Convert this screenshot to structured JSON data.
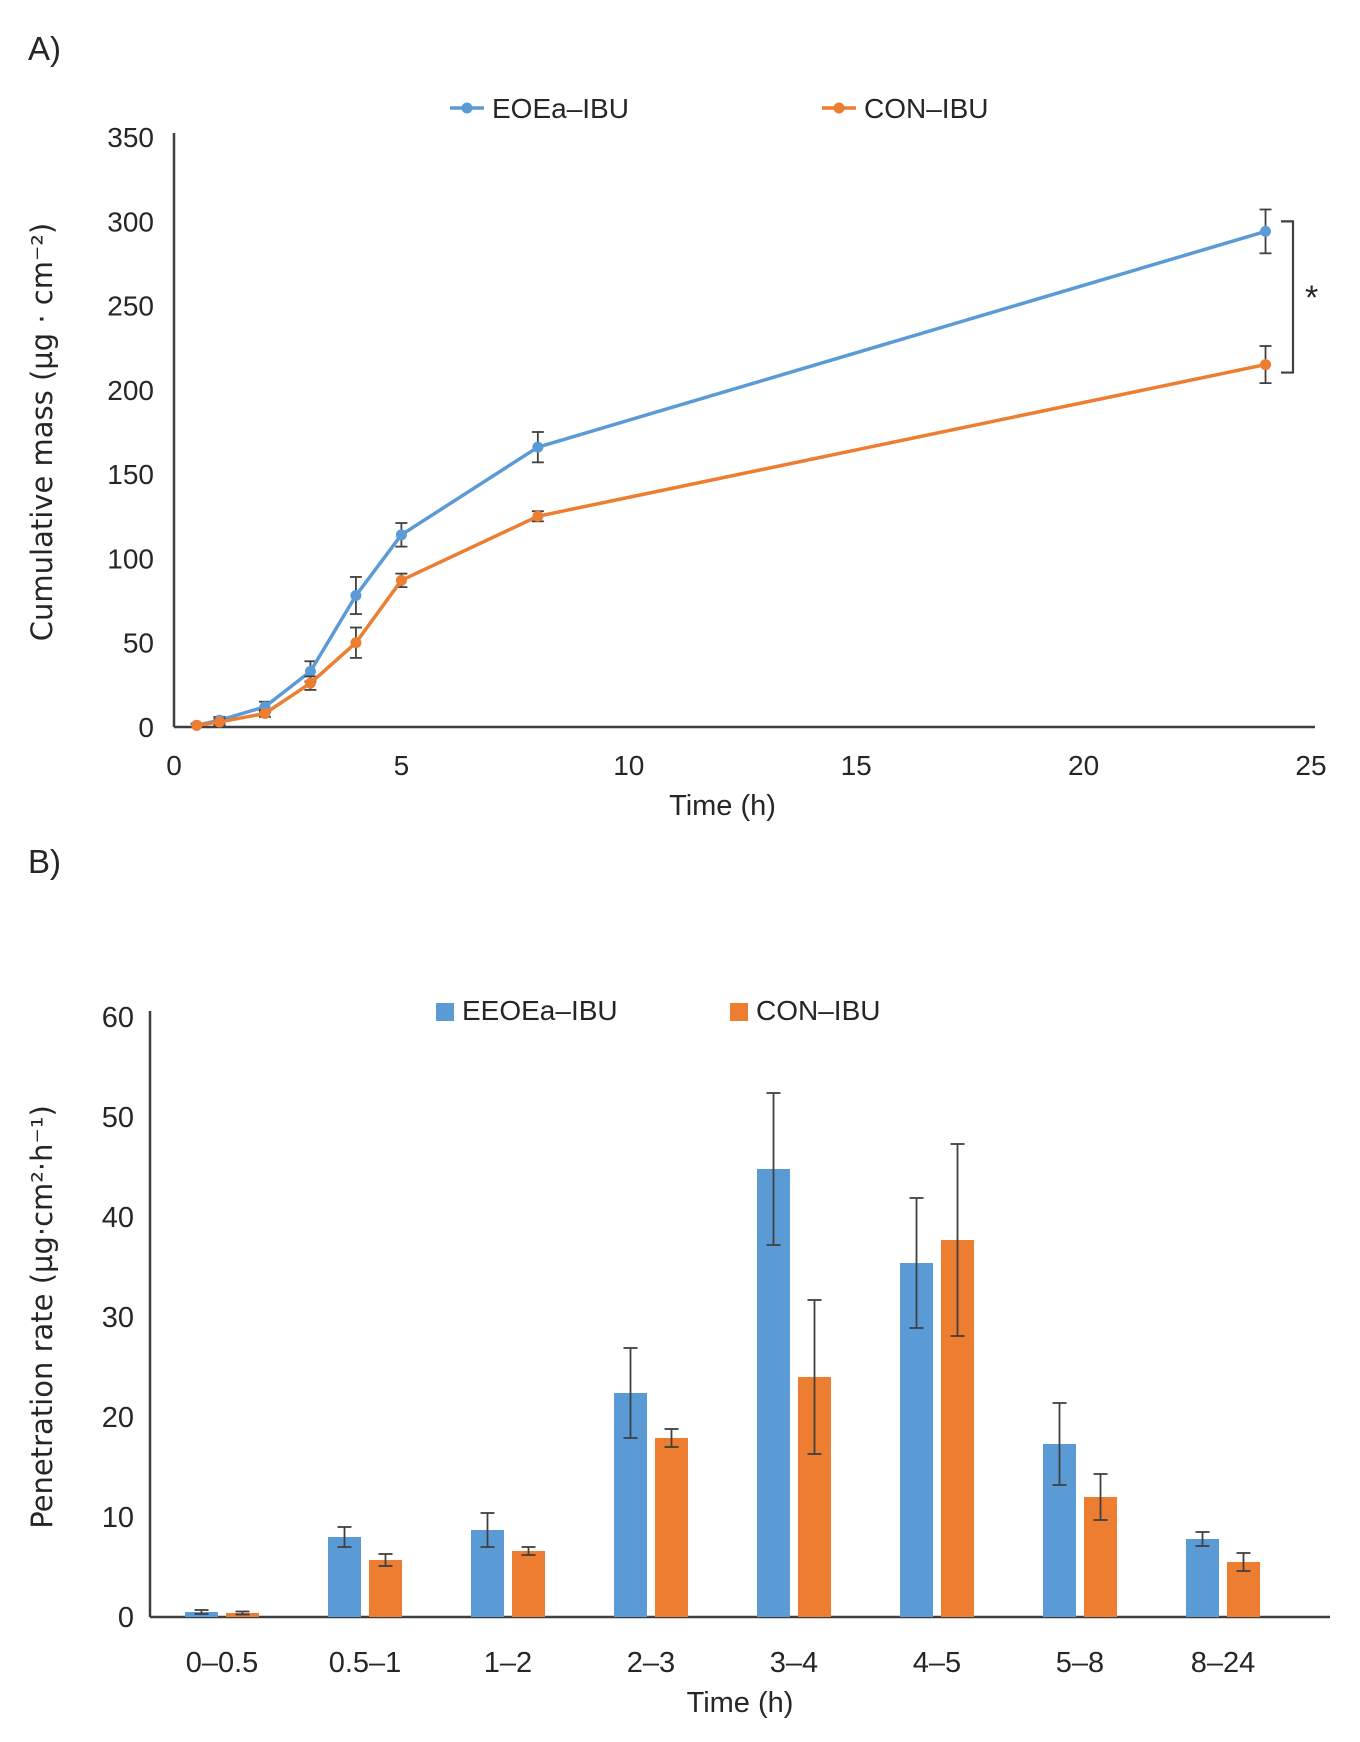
{
  "panels": {
    "a": {
      "label": "A)"
    },
    "b": {
      "label": "B)"
    }
  },
  "chart_data": [
    {
      "panel": "A",
      "type": "line",
      "title": "",
      "xlabel": "Time (h)",
      "ylabel": "Cumulative mass (µg · cm⁻²)",
      "xlim": [
        0,
        25
      ],
      "ylim": [
        0,
        350
      ],
      "xticks": [
        0,
        5,
        10,
        15,
        20,
        25
      ],
      "yticks": [
        0,
        50,
        100,
        150,
        200,
        250,
        300,
        350
      ],
      "grid": false,
      "legend_position": "top",
      "x": [
        0.5,
        1,
        2,
        3,
        4,
        5,
        8,
        24
      ],
      "series": [
        {
          "name": "EOEa–IBU",
          "color": "#5B9BD5",
          "marker": "circle",
          "values": [
            1,
            4,
            12,
            33,
            78,
            114,
            166,
            294
          ],
          "errors": [
            1,
            2,
            3,
            6,
            11,
            7,
            9,
            13
          ]
        },
        {
          "name": "CON–IBU",
          "color": "#ED7D31",
          "marker": "circle",
          "values": [
            1,
            3,
            8,
            26,
            50,
            87,
            125,
            215
          ],
          "errors": [
            1,
            2,
            2,
            4,
            9,
            4,
            3,
            11
          ]
        }
      ],
      "annotation": {
        "symbol": "*",
        "compares": [
          "EOEa–IBU at 24 h",
          "CON–IBU at 24 h"
        ]
      }
    },
    {
      "panel": "B",
      "type": "bar",
      "title": "",
      "xlabel": "Time (h)",
      "ylabel": "Penetration rate (µg·cm²·h⁻¹)",
      "ylim": [
        0,
        60
      ],
      "yticks": [
        0,
        10,
        20,
        30,
        40,
        50,
        60
      ],
      "grid": false,
      "legend_position": "top",
      "categories": [
        "0–0.5",
        "0.5–1",
        "1–2",
        "2–3",
        "3–4",
        "4–5",
        "5–8",
        "8–24"
      ],
      "series": [
        {
          "name": "EEOEa–IBU",
          "color": "#5B9BD5",
          "values": [
            0.5,
            8.0,
            8.7,
            22.4,
            44.8,
            35.4,
            17.3,
            7.8
          ],
          "errors": [
            0.2,
            1.0,
            1.7,
            4.5,
            7.6,
            6.5,
            4.1,
            0.7
          ]
        },
        {
          "name": "CON–IBU",
          "color": "#ED7D31",
          "values": [
            0.4,
            5.7,
            6.6,
            17.9,
            24.0,
            37.7,
            12.0,
            5.5
          ],
          "errors": [
            0.15,
            0.6,
            0.4,
            0.9,
            7.7,
            9.6,
            2.3,
            0.9
          ]
        }
      ]
    }
  ],
  "colors": {
    "blue_series": "#5B9BD5",
    "orange_series": "#ED7D31",
    "axis": "#3f3f3f",
    "error_bar": "#404040",
    "text": "#262626"
  }
}
